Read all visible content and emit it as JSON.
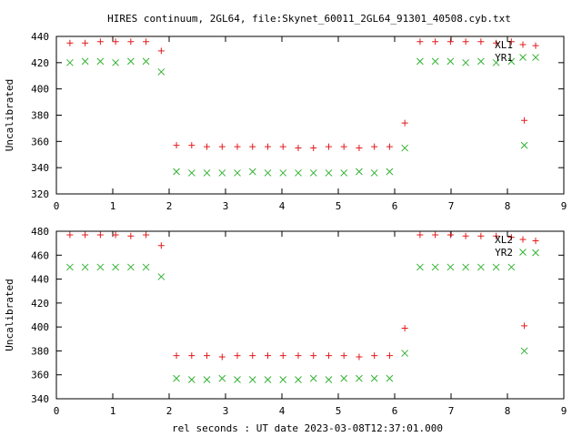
{
  "title": "HIRES continuum, 2GL64, file:Skynet_60011_2GL64_91301_40508.cyb.txt",
  "xlabel": "rel seconds : UT date 2023-03-08T12:37:01.000",
  "colors": {
    "red": "#e41a1c",
    "green": "#33b233"
  },
  "chart_data": [
    {
      "type": "scatter",
      "ylabel": "Uncalibrated",
      "xlim": [
        0,
        9
      ],
      "ylim": [
        320,
        440
      ],
      "xticks": [
        "0",
        "1",
        "2",
        "3",
        "4",
        "5",
        "6",
        "7",
        "8",
        "9"
      ],
      "yticks": [
        "320",
        "340",
        "360",
        "380",
        "400",
        "420",
        "440"
      ],
      "grid": false,
      "legend": "top-right",
      "series": [
        {
          "name": "XL1",
          "marker": "plus",
          "color": "#e41a1c",
          "x": [
            0.24,
            0.51,
            0.78,
            1.05,
            1.32,
            1.59,
            1.86,
            2.13,
            2.4,
            2.67,
            2.94,
            3.21,
            3.48,
            3.75,
            4.02,
            4.29,
            4.56,
            4.83,
            5.1,
            5.37,
            5.64,
            5.91,
            6.18,
            6.45,
            6.72,
            6.99,
            7.26,
            7.53,
            7.8,
            8.07,
            8.3,
            8.5
          ],
          "y": [
            435,
            435,
            436,
            436,
            436,
            436,
            429,
            357,
            357,
            356,
            356,
            356,
            356,
            356,
            356,
            355,
            355,
            356,
            356,
            355,
            356,
            356,
            374,
            436,
            436,
            436,
            436,
            436,
            435,
            436,
            376,
            433
          ]
        },
        {
          "name": "YR1",
          "marker": "cross",
          "color": "#33b233",
          "x": [
            0.24,
            0.51,
            0.78,
            1.05,
            1.32,
            1.59,
            1.86,
            2.13,
            2.4,
            2.67,
            2.94,
            3.21,
            3.48,
            3.75,
            4.02,
            4.29,
            4.56,
            4.83,
            5.1,
            5.37,
            5.64,
            5.91,
            6.18,
            6.45,
            6.72,
            6.99,
            7.26,
            7.53,
            7.8,
            8.07,
            8.3,
            8.5
          ],
          "y": [
            420,
            421,
            421,
            420,
            421,
            421,
            413,
            337,
            336,
            336,
            336,
            336,
            337,
            336,
            336,
            336,
            336,
            336,
            336,
            337,
            336,
            337,
            355,
            421,
            421,
            421,
            420,
            421,
            420,
            421,
            357,
            424
          ]
        }
      ]
    },
    {
      "type": "scatter",
      "ylabel": "Uncalibrated",
      "xlim": [
        0,
        9
      ],
      "ylim": [
        340,
        480
      ],
      "xticks": [
        "0",
        "1",
        "2",
        "3",
        "4",
        "5",
        "6",
        "7",
        "8",
        "9"
      ],
      "yticks": [
        "340",
        "360",
        "380",
        "400",
        "420",
        "440",
        "460",
        "480"
      ],
      "grid": false,
      "legend": "top-right",
      "series": [
        {
          "name": "XL2",
          "marker": "plus",
          "color": "#e41a1c",
          "x": [
            0.24,
            0.51,
            0.78,
            1.05,
            1.32,
            1.59,
            1.86,
            2.13,
            2.4,
            2.67,
            2.94,
            3.21,
            3.48,
            3.75,
            4.02,
            4.29,
            4.56,
            4.83,
            5.1,
            5.37,
            5.64,
            5.91,
            6.18,
            6.45,
            6.72,
            6.99,
            7.26,
            7.53,
            7.8,
            8.07,
            8.3,
            8.5
          ],
          "y": [
            477,
            477,
            477,
            477,
            476,
            477,
            468,
            376,
            376,
            376,
            375,
            376,
            376,
            376,
            376,
            376,
            376,
            376,
            376,
            375,
            376,
            376,
            399,
            477,
            477,
            477,
            476,
            476,
            476,
            475,
            401,
            472
          ]
        },
        {
          "name": "YR2",
          "marker": "cross",
          "color": "#33b233",
          "x": [
            0.24,
            0.51,
            0.78,
            1.05,
            1.32,
            1.59,
            1.86,
            2.13,
            2.4,
            2.67,
            2.94,
            3.21,
            3.48,
            3.75,
            4.02,
            4.29,
            4.56,
            4.83,
            5.1,
            5.37,
            5.64,
            5.91,
            6.18,
            6.45,
            6.72,
            6.99,
            7.26,
            7.53,
            7.8,
            8.07,
            8.3,
            8.5
          ],
          "y": [
            450,
            450,
            450,
            450,
            450,
            450,
            442,
            357,
            356,
            356,
            357,
            356,
            356,
            356,
            356,
            356,
            357,
            356,
            357,
            357,
            357,
            357,
            378,
            450,
            450,
            450,
            450,
            450,
            450,
            450,
            380,
            462
          ]
        }
      ]
    }
  ]
}
